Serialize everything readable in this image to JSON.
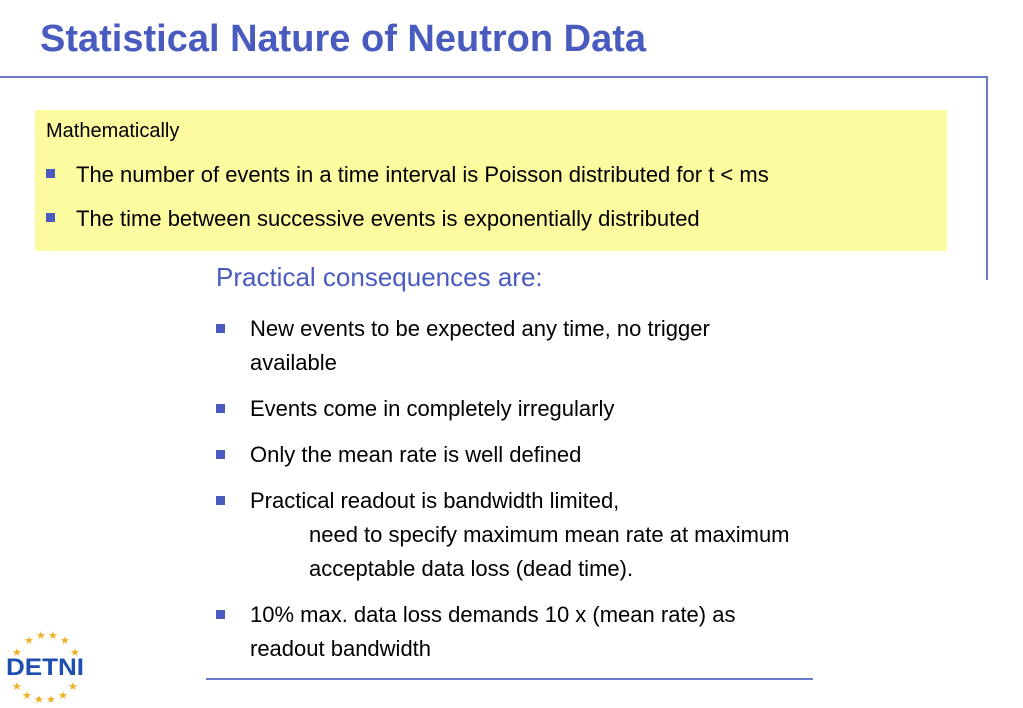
{
  "slide": {
    "title": "Statistical Nature of Neutron Data",
    "box": {
      "heading": "Mathematically",
      "bullets": [
        "The number of events in a time interval is Poisson distributed for t < ms",
        "The time between successive events is exponentially distributed"
      ]
    },
    "subheading": "Practical consequences are:",
    "items": [
      {
        "lines": [
          "New events to be expected any time, no trigger",
          "available"
        ]
      },
      {
        "lines": [
          "Events come in completely irregularly"
        ]
      },
      {
        "lines": [
          "Only the mean rate is well defined"
        ]
      },
      {
        "lines": [
          "Practical readout is bandwidth limited,",
          "need to specify maximum mean rate at maximum",
          "acceptable data loss (dead time)."
        ]
      },
      {
        "lines": [
          "10% max. data loss demands 10 x (mean rate) as",
          "readout bandwidth"
        ]
      }
    ],
    "logo": {
      "text": "DETNI",
      "icon": "eu-stars-logo"
    },
    "colors": {
      "accent": "#4a5bbf",
      "box_fill": "#fdfba0",
      "rule": "#6c7ad0",
      "star": "#f0b020"
    }
  }
}
